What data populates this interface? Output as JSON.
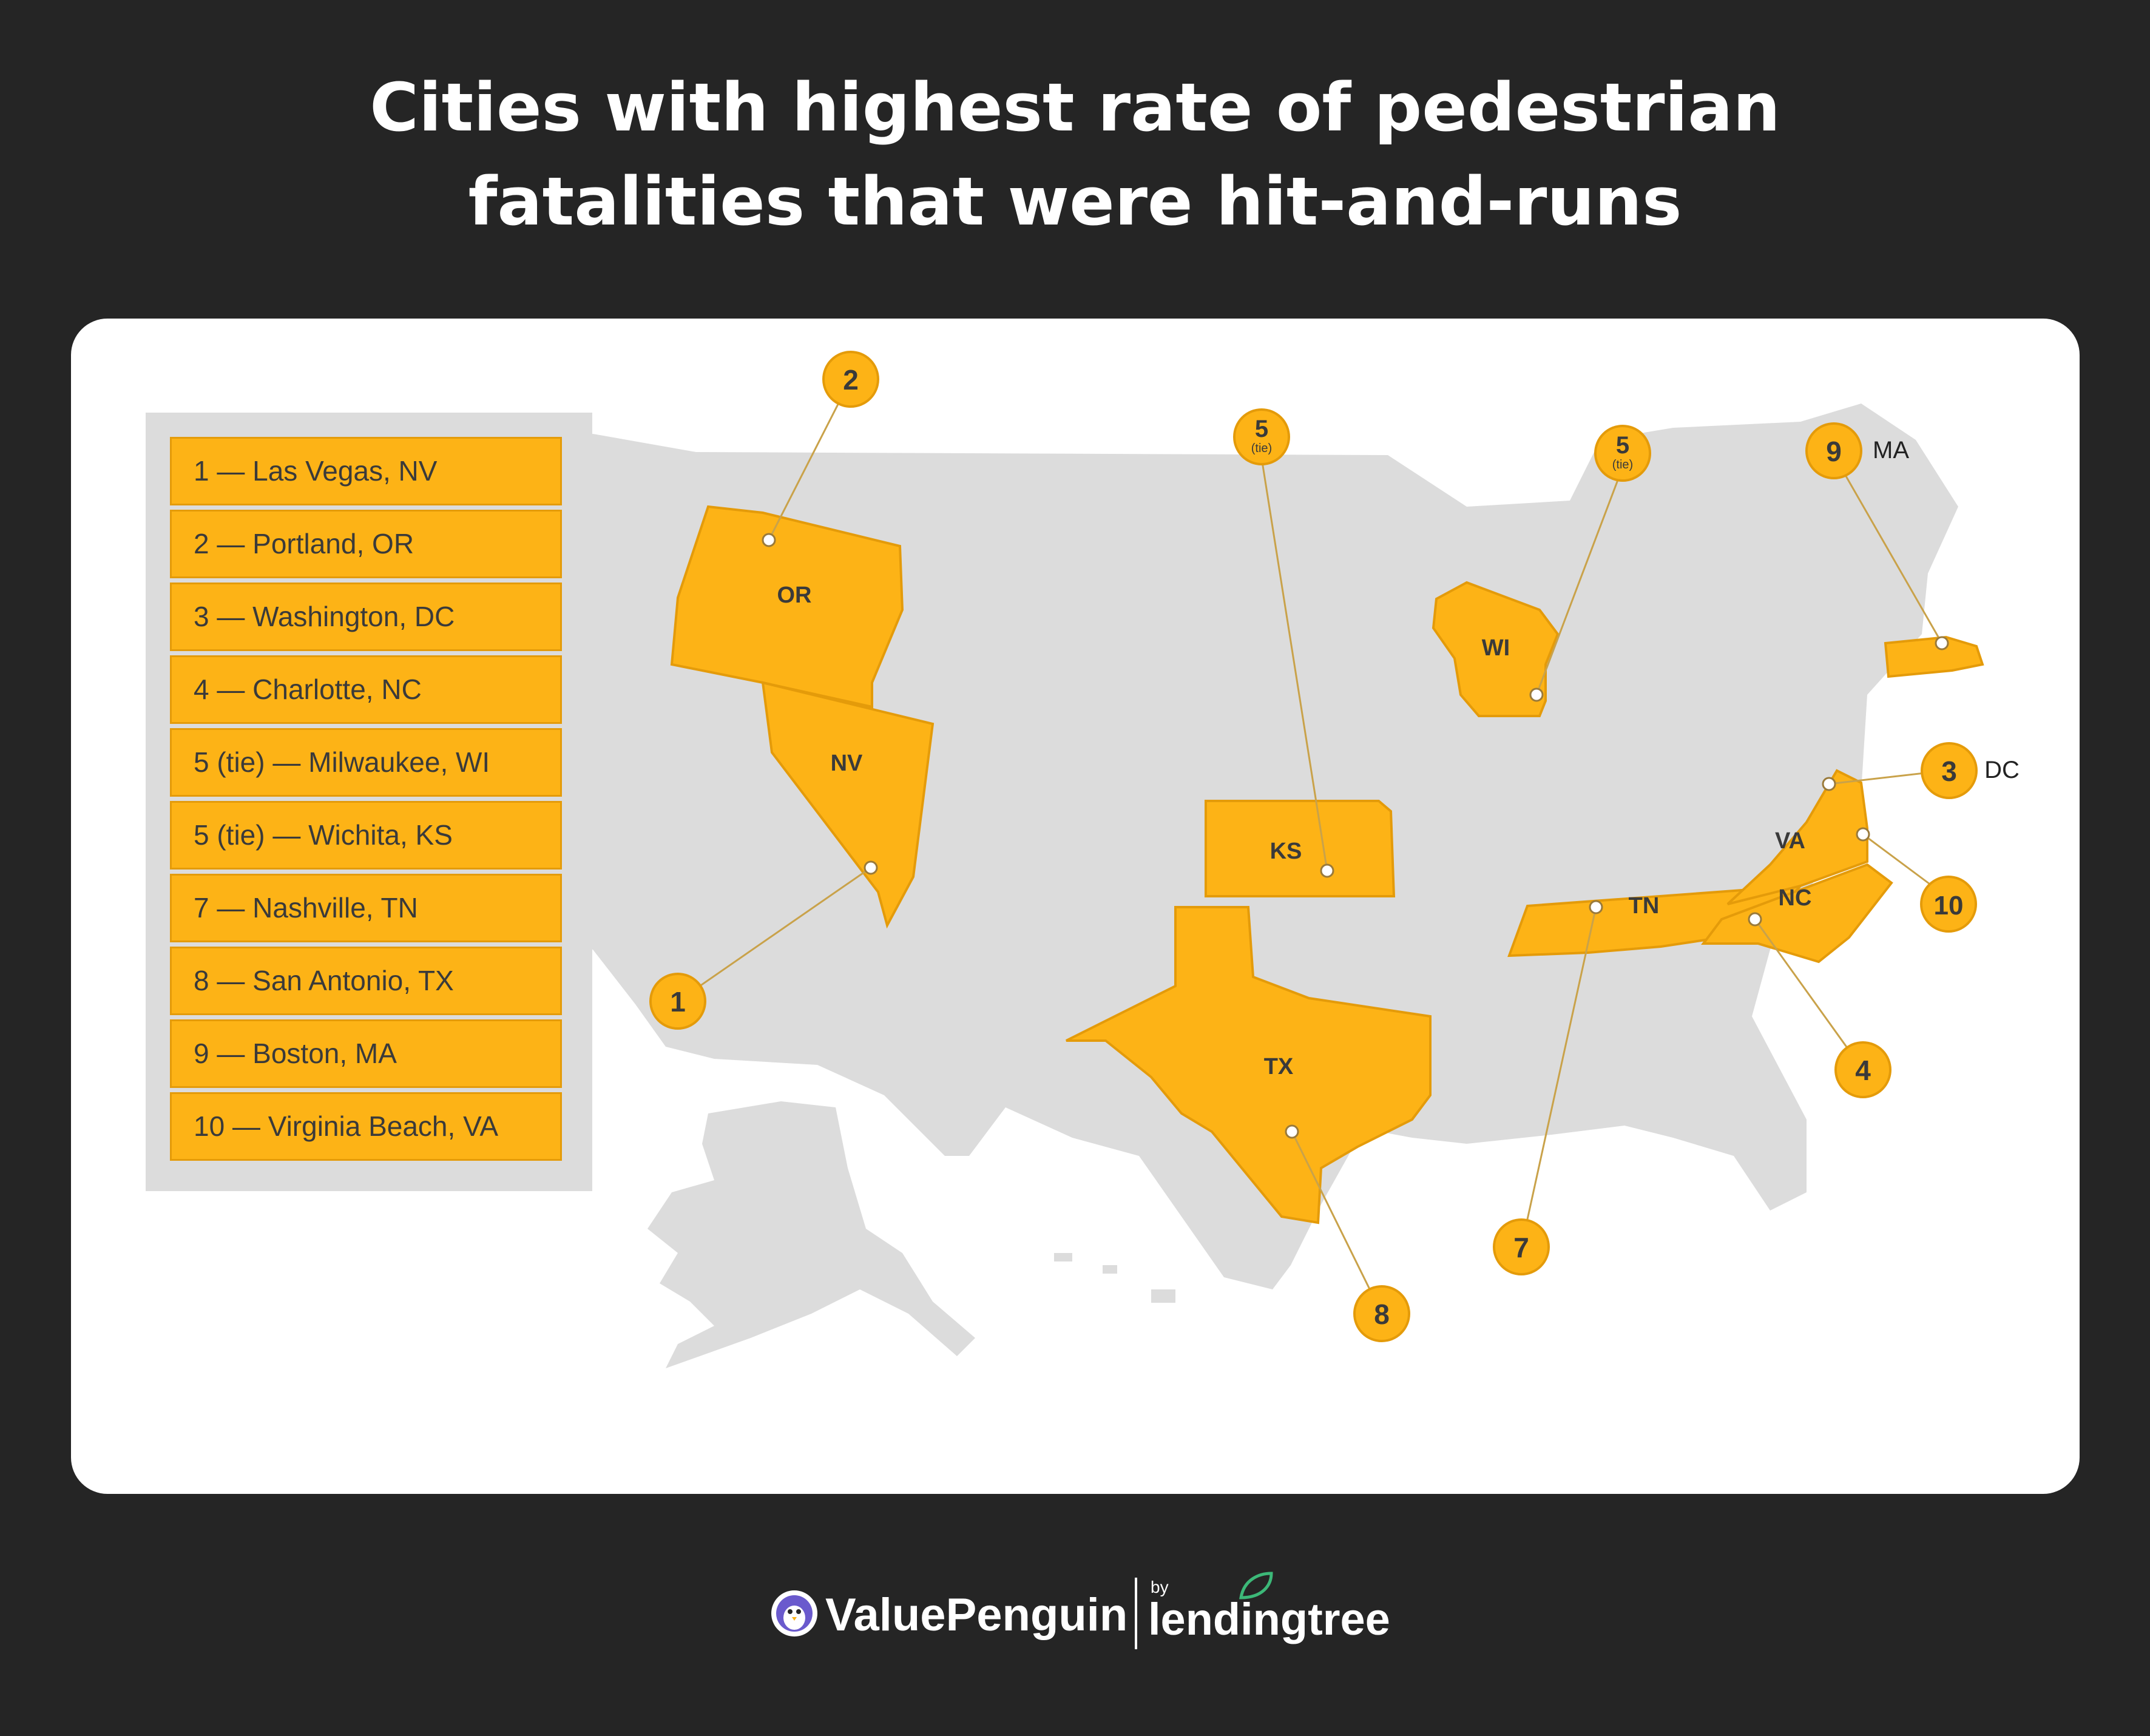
{
  "title": {
    "line1": "Cities with highest rate of pedestrian",
    "line2": "fatalities that were hit-and-runs"
  },
  "legend": [
    "1 — Las Vegas, NV",
    "2 — Portland, OR",
    "3 — Washington, DC",
    "4 — Charlotte, NC",
    "5 (tie) — Milwaukee, WI",
    "5 (tie) — Wichita, KS",
    "7 — Nashville, TN",
    "8 — San Antonio, TX",
    "9 — Boston, MA",
    "10 — Virginia Beach, VA"
  ],
  "states": {
    "or": "OR",
    "nv": "NV",
    "ks": "KS",
    "tx": "TX",
    "wi": "WI",
    "tn": "TN",
    "nc": "NC",
    "va": "VA"
  },
  "markers": {
    "m1": "1",
    "m2": "2",
    "m3": "3",
    "m4": "4",
    "m5ks": "5",
    "m5wi": "5",
    "tie": "(tie)",
    "m7": "7",
    "m8": "8",
    "m9": "9",
    "m10": "10"
  },
  "marker_labels": {
    "ma": "MA",
    "dc": "DC"
  },
  "colors": {
    "highlight": "#fdb316",
    "base_map": "#dcdcdc",
    "background": "#252525"
  },
  "footer": {
    "brand1": "ValuePenguin",
    "by": "by",
    "brand2": "lendingtree"
  }
}
